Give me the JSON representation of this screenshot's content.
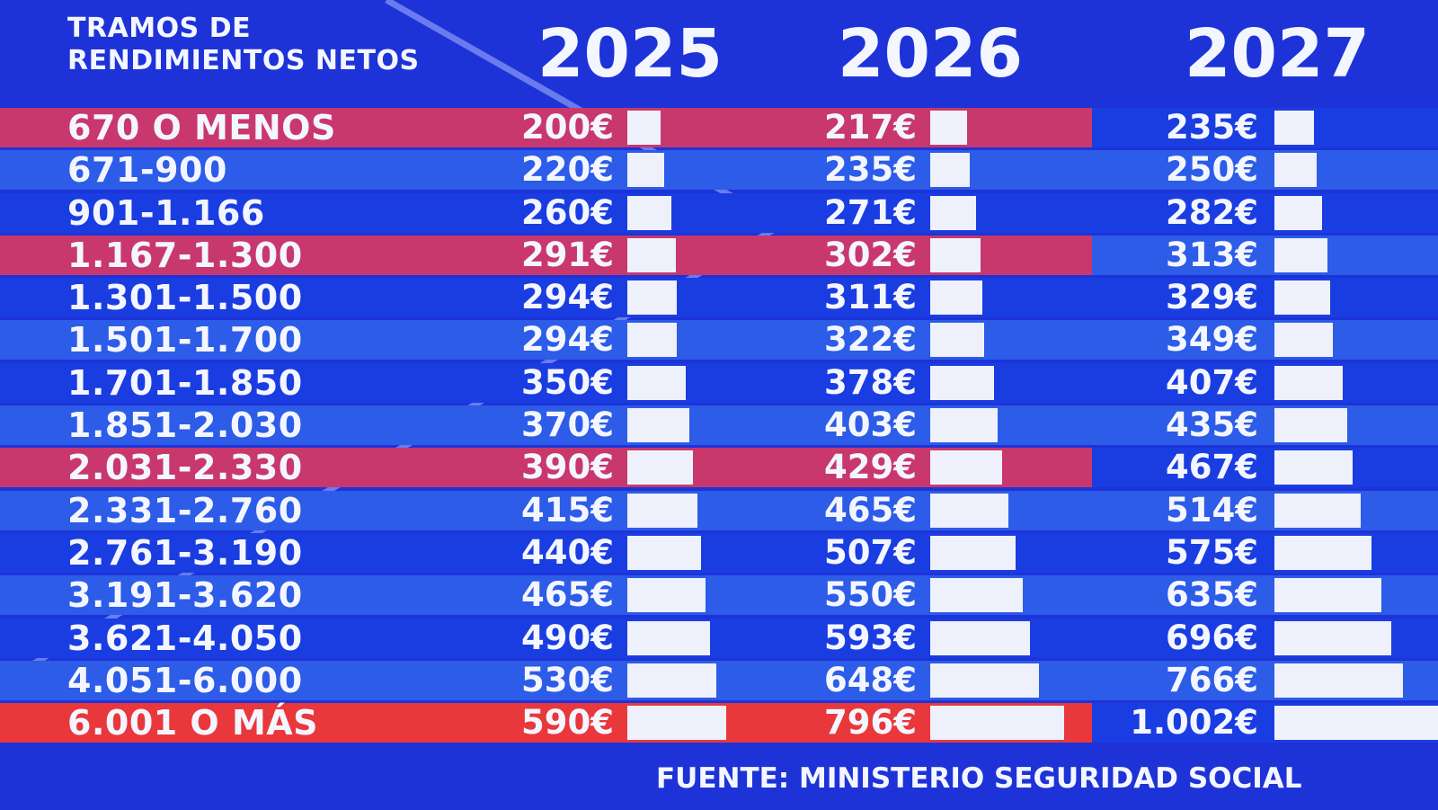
{
  "header": {
    "label_line1": "TRAMOS DE",
    "label_line2": "RENDIMIENTOS NETOS"
  },
  "footer": "FUENTE: MINISTERIO SEGURIDAD SOCIAL",
  "colors": {
    "background": "#1d33d8",
    "row_a": "#1a3de2",
    "row_b": "#2c5ce8",
    "highlight": "#c8386c",
    "last_row": "#e8383c",
    "bar": "#eef1fb"
  },
  "chart_data": {
    "type": "bar",
    "orientation": "horizontal",
    "title": "",
    "categories_header": "TRAMOS DE RENDIMIENTOS NETOS",
    "categories": [
      "670 O MENOS",
      "671-900",
      "901-1.166",
      "1.167-1.300",
      "1.301-1.500",
      "1.501-1.700",
      "1.701-1.850",
      "1.851-2.030",
      "2.031-2.330",
      "2.331-2.760",
      "2.761-3.190",
      "3.191-3.620",
      "3.621-4.050",
      "4.051-6.000",
      "6.001 O MÁS"
    ],
    "highlighted_rows": [
      0,
      3,
      8,
      14
    ],
    "series": [
      {
        "name": "2025",
        "values": [
          200,
          220,
          260,
          291,
          294,
          294,
          350,
          370,
          390,
          415,
          440,
          465,
          490,
          530,
          590
        ],
        "labels": [
          "200€",
          "220€",
          "260€",
          "291€",
          "294€",
          "294€",
          "350€",
          "370€",
          "390€",
          "415€",
          "440€",
          "465€",
          "490€",
          "530€",
          "590€"
        ]
      },
      {
        "name": "2026",
        "values": [
          217,
          235,
          271,
          302,
          311,
          322,
          378,
          403,
          429,
          465,
          507,
          550,
          593,
          648,
          796
        ],
        "labels": [
          "217€",
          "235€",
          "271€",
          "302€",
          "311€",
          "322€",
          "378€",
          "403€",
          "429€",
          "465€",
          "507€",
          "550€",
          "593€",
          "648€",
          "796€"
        ]
      },
      {
        "name": "2027",
        "values": [
          235,
          250,
          282,
          313,
          329,
          349,
          407,
          435,
          467,
          514,
          575,
          635,
          696,
          766,
          1002
        ],
        "labels": [
          "235€",
          "250€",
          "282€",
          "313€",
          "329€",
          "349€",
          "407€",
          "435€",
          "467€",
          "514€",
          "575€",
          "635€",
          "696€",
          "766€",
          "1.002€"
        ]
      }
    ],
    "unit": "€"
  }
}
